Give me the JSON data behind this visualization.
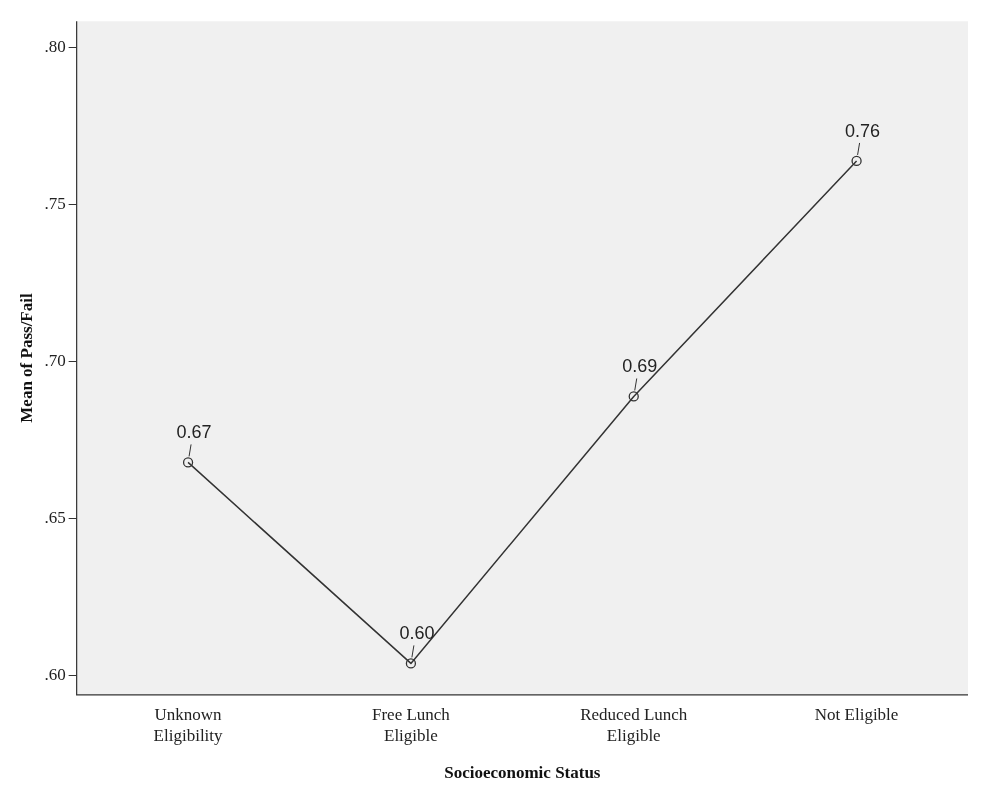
{
  "chart_data": {
    "type": "line",
    "xlabel": "Socioeconomic Status",
    "ylabel": "Mean of Pass/Fail",
    "categories": [
      "Unknown Eligibility",
      "Free Lunch Eligible",
      "Reduced Lunch Eligible",
      "Not Eligible"
    ],
    "series": [
      {
        "color": "#333333",
        "values": [
          0.668,
          0.604,
          0.689,
          0.764
        ],
        "value_labels": [
          "0.67",
          "0.60",
          "0.69",
          "0.76"
        ]
      }
    ],
    "ylim": [
      0.594,
      0.8085
    ],
    "yticks": [
      {
        "value": 0.6,
        "label": ".60"
      },
      {
        "value": 0.65,
        "label": ".65"
      },
      {
        "value": 0.7,
        "label": ".70"
      },
      {
        "value": 0.75,
        "label": ".75"
      },
      {
        "value": 0.8,
        "label": ".80"
      }
    ],
    "grid": false,
    "legend": false,
    "marker": "circle",
    "line_style": "solid"
  }
}
